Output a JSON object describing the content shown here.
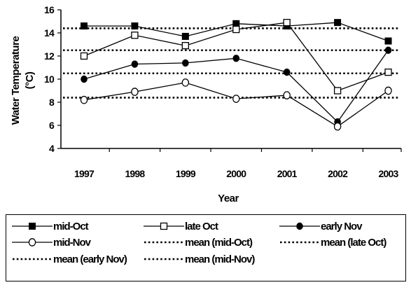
{
  "chart_data": {
    "type": "line",
    "title": "",
    "xlabel": "Year",
    "ylabel": "Water Temperature (°C)",
    "ylabel_lines": [
      "Water Temperature",
      "(°C)"
    ],
    "ylim": [
      4,
      16
    ],
    "yticks": [
      "4",
      "6",
      "8",
      "10",
      "12",
      "14",
      "16"
    ],
    "categories": [
      "1997",
      "1998",
      "1999",
      "2000",
      "2001",
      "2002",
      "2003"
    ],
    "grid": false,
    "legend_position": "bottom",
    "series": [
      {
        "name": "mid-Oct",
        "marker": "filled-square",
        "values": [
          14.6,
          14.6,
          13.7,
          14.8,
          14.6,
          14.9,
          13.3
        ]
      },
      {
        "name": "late Oct",
        "marker": "open-square",
        "values": [
          12.0,
          13.8,
          12.9,
          14.3,
          14.9,
          9.0,
          10.6
        ]
      },
      {
        "name": "early Nov",
        "marker": "filled-circle",
        "values": [
          10.0,
          11.3,
          11.4,
          11.8,
          10.6,
          6.3,
          12.5
        ]
      },
      {
        "name": "mid-Nov",
        "marker": "open-circle",
        "values": [
          8.2,
          8.9,
          9.7,
          8.3,
          8.6,
          5.9,
          9.0
        ]
      }
    ],
    "means": [
      {
        "name": "mean (mid-Oct)",
        "value": 14.4
      },
      {
        "name": "mean (late Oct)",
        "value": 12.5
      },
      {
        "name": "mean (early Nov)",
        "value": 10.5
      },
      {
        "name": "mean (mid-Nov)",
        "value": 8.4
      }
    ]
  },
  "legend": {
    "items": [
      {
        "label": "mid-Oct",
        "kind": "filled-square"
      },
      {
        "label": "late Oct",
        "kind": "open-square"
      },
      {
        "label": "early Nov",
        "kind": "filled-circle"
      },
      {
        "label": "mid-Nov",
        "kind": "open-circle"
      },
      {
        "label": "mean (mid-Oct)",
        "kind": "dotted"
      },
      {
        "label": "mean (late Oct)",
        "kind": "dotted"
      },
      {
        "label": "mean (early Nov)",
        "kind": "dotted"
      },
      {
        "label": "mean (mid-Nov)",
        "kind": "dotted"
      }
    ]
  }
}
